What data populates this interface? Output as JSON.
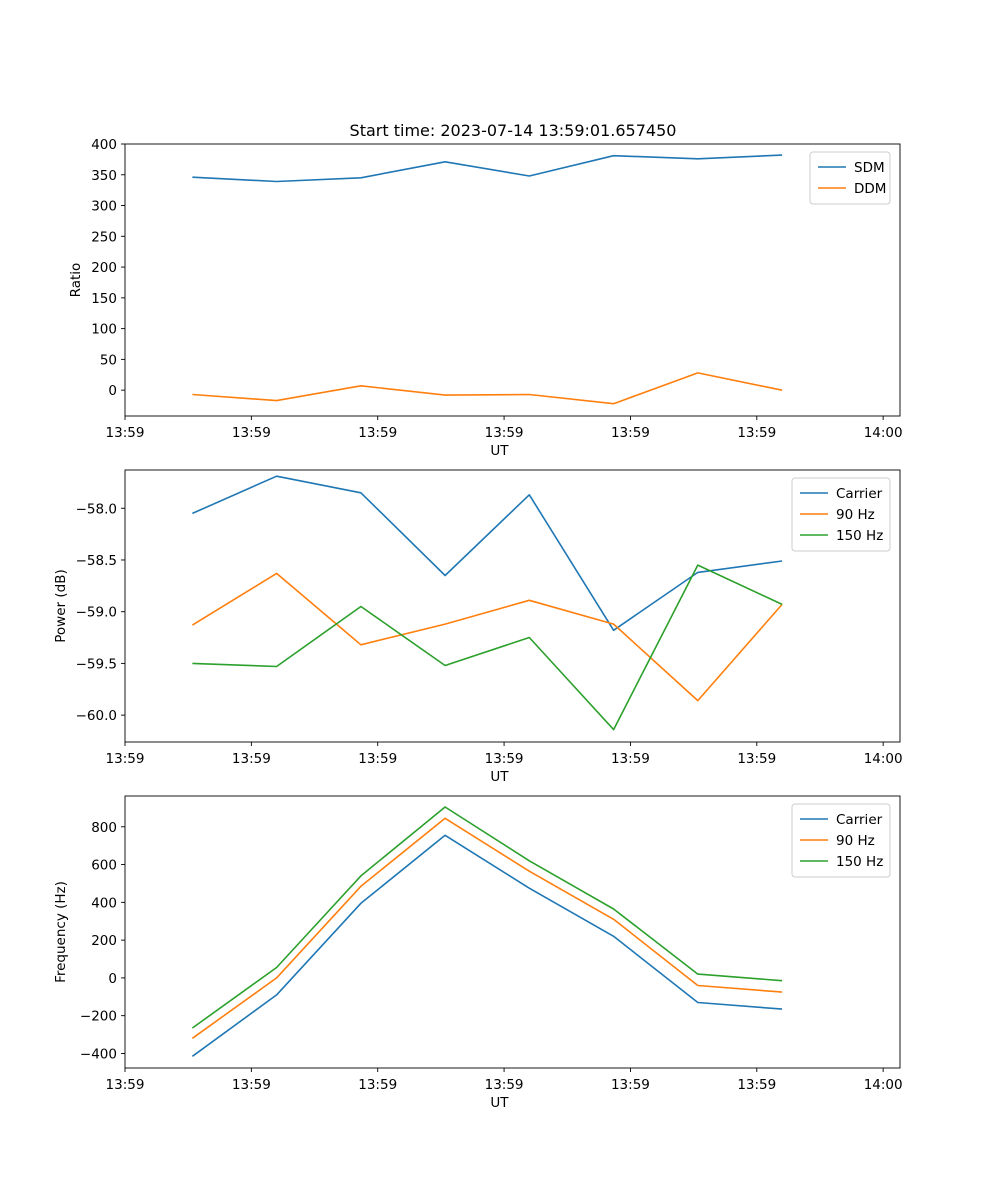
{
  "figure_title": "Start time: 2023-07-14 13:59:01.657450",
  "colors": {
    "C0": "#1f77b4",
    "C1": "#ff7f0e",
    "C2": "#2ca02c"
  },
  "chart_data": [
    {
      "type": "line",
      "title": "Start time: 2023-07-14 13:59:01.657450",
      "xlabel": "UT",
      "ylabel": "Ratio",
      "x": [
        1,
        2,
        3,
        4,
        5,
        6,
        7,
        8
      ],
      "xlim": [
        0.2,
        9.4
      ],
      "ylim": [
        -42,
        400
      ],
      "xticks": [
        0.2,
        1.7,
        3.2,
        4.7,
        6.2,
        7.7,
        9.2
      ],
      "xtick_labels": [
        "13:59",
        "13:59",
        "13:59",
        "13:59",
        "13:59",
        "13:59",
        "14:00"
      ],
      "yticks": [
        0,
        50,
        100,
        150,
        200,
        250,
        300,
        350,
        400
      ],
      "ytick_labels": [
        "0",
        "50",
        "100",
        "150",
        "200",
        "250",
        "300",
        "350",
        "400"
      ],
      "legend_loc": "upper right",
      "series": [
        {
          "name": "SDM",
          "color": "#1f77b4",
          "values": [
            346,
            339,
            345,
            371,
            348,
            381,
            376,
            382
          ]
        },
        {
          "name": "DDM",
          "color": "#ff7f0e",
          "values": [
            -7,
            -17,
            7,
            -8,
            -7,
            -22,
            28,
            0
          ]
        }
      ]
    },
    {
      "type": "line",
      "title": "",
      "xlabel": "UT",
      "ylabel": "Power (dB)",
      "x": [
        1,
        2,
        3,
        4,
        5,
        6,
        7,
        8
      ],
      "xlim": [
        0.2,
        9.4
      ],
      "ylim": [
        -60.26,
        -57.63
      ],
      "xticks": [
        0.2,
        1.7,
        3.2,
        4.7,
        6.2,
        7.7,
        9.2
      ],
      "xtick_labels": [
        "13:59",
        "13:59",
        "13:59",
        "13:59",
        "13:59",
        "13:59",
        "14:00"
      ],
      "yticks": [
        -60.0,
        -59.5,
        -59.0,
        -58.5,
        -58.0
      ],
      "ytick_labels": [
        "−60.0",
        "−59.5",
        "−59.0",
        "−58.5",
        "−58.0"
      ],
      "legend_loc": "upper right",
      "series": [
        {
          "name": "Carrier",
          "color": "#1f77b4",
          "values": [
            -58.05,
            -57.69,
            -57.85,
            -58.65,
            -57.87,
            -59.18,
            -58.62,
            -58.51
          ]
        },
        {
          "name": "90 Hz",
          "color": "#ff7f0e",
          "values": [
            -59.13,
            -58.63,
            -59.32,
            -59.12,
            -58.89,
            -59.12,
            -59.86,
            -58.93
          ]
        },
        {
          "name": "150 Hz",
          "color": "#2ca02c",
          "values": [
            -59.5,
            -59.53,
            -58.95,
            -59.52,
            -59.25,
            -60.14,
            -58.55,
            -58.93
          ]
        }
      ]
    },
    {
      "type": "line",
      "title": "",
      "xlabel": "UT",
      "ylabel": "Frequency (Hz)",
      "x": [
        1,
        2,
        3,
        4,
        5,
        6,
        7,
        8
      ],
      "xlim": [
        0.2,
        9.4
      ],
      "ylim": [
        -477,
        963
      ],
      "xticks": [
        0.2,
        1.7,
        3.2,
        4.7,
        6.2,
        7.7,
        9.2
      ],
      "xtick_labels": [
        "13:59",
        "13:59",
        "13:59",
        "13:59",
        "13:59",
        "13:59",
        "14:00"
      ],
      "yticks": [
        -400,
        -200,
        0,
        200,
        400,
        600,
        800
      ],
      "ytick_labels": [
        "−400",
        "−200",
        "0",
        "200",
        "400",
        "600",
        "800"
      ],
      "legend_loc": "upper right",
      "series": [
        {
          "name": "Carrier",
          "color": "#1f77b4",
          "values": [
            -415,
            -90,
            395,
            755,
            475,
            220,
            -130,
            -165
          ]
        },
        {
          "name": "90 Hz",
          "color": "#ff7f0e",
          "values": [
            -320,
            0,
            485,
            845,
            565,
            310,
            -40,
            -75
          ]
        },
        {
          "name": "150 Hz",
          "color": "#2ca02c",
          "values": [
            -265,
            55,
            540,
            905,
            620,
            365,
            20,
            -15
          ]
        }
      ]
    }
  ]
}
